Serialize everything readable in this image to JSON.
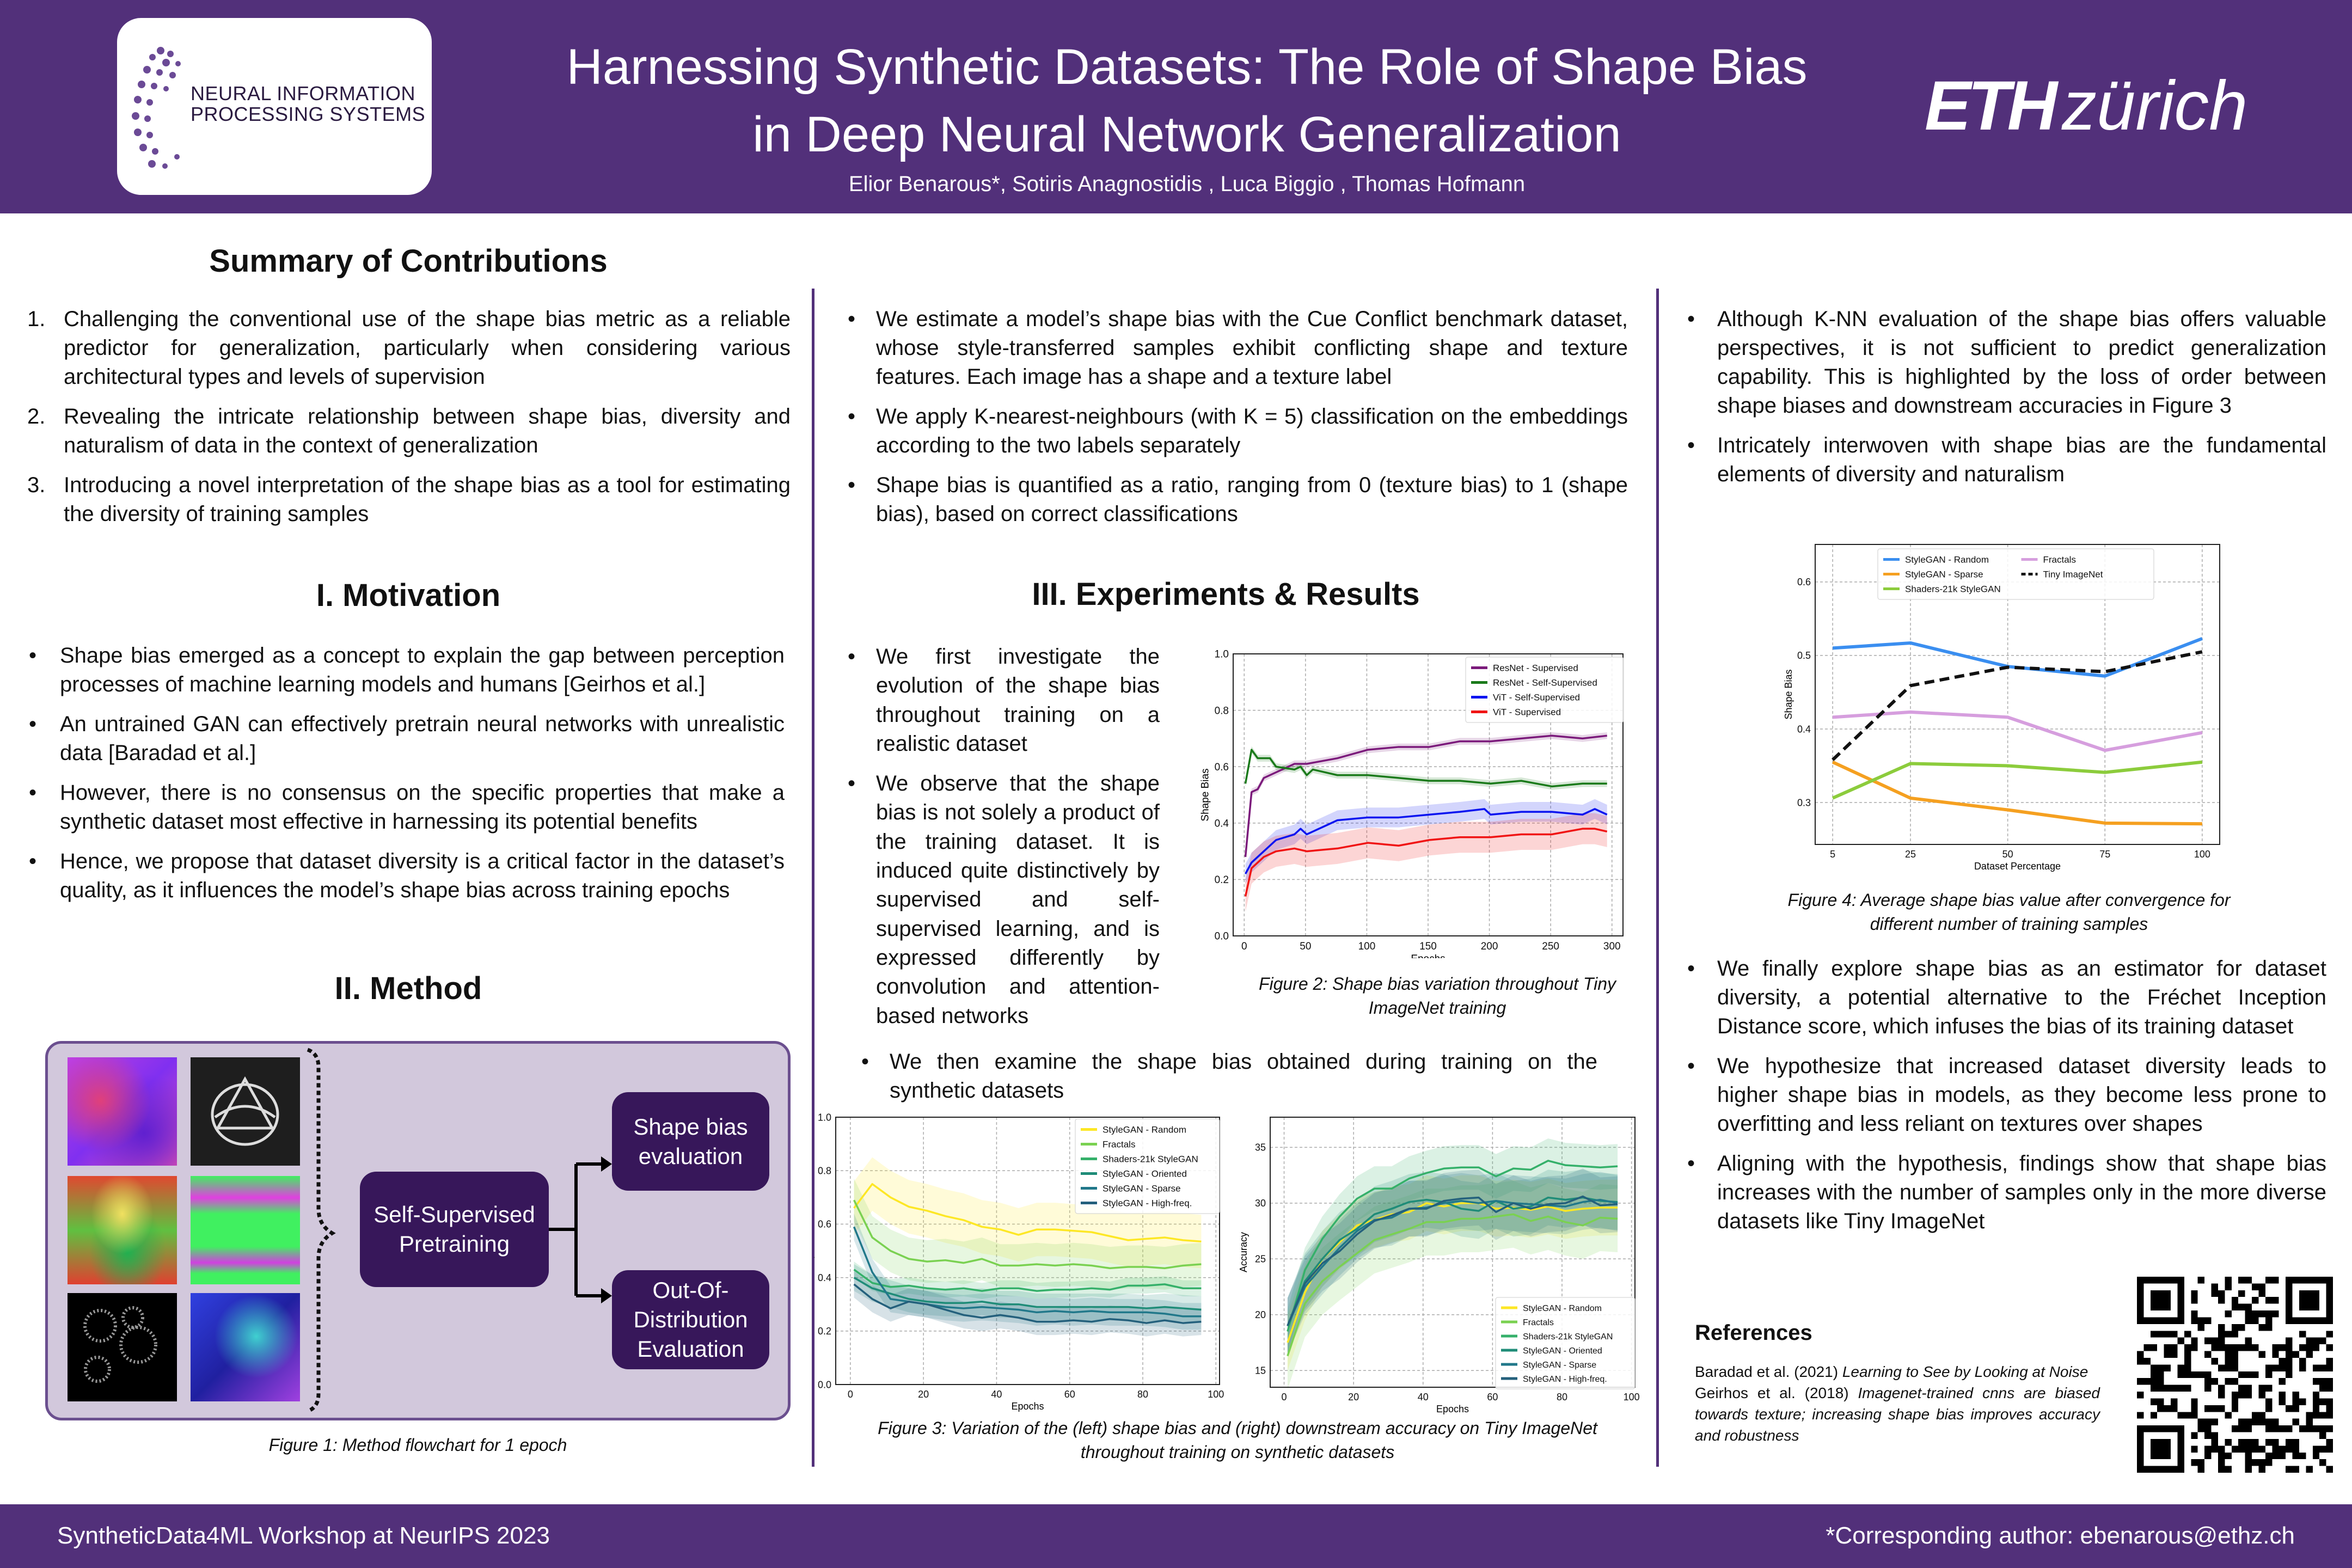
{
  "header": {
    "title_line1": "Harnessing Synthetic Datasets: The Role of Shape Bias",
    "title_line2": "in Deep Neural Network Generalization",
    "authors": "Elior Benarous*,  Sotiris Anagnostidis ,  Luca Biggio ,  Thomas Hofmann",
    "left_logo_text_line1": "NEURAL INFORMATION",
    "left_logo_text_line2": "PROCESSING SYSTEMS",
    "right_logo_bold": "ETH",
    "right_logo_rest": "zürich",
    "brand_color": "#52307a"
  },
  "contributions": {
    "heading": "Summary of Contributions",
    "items": [
      {
        "num": "1.",
        "text": "Challenging the conventional use of the shape bias metric as a reliable predictor for generalization, particularly when considering various architectural types and levels of supervision"
      },
      {
        "num": "2.",
        "text": "Revealing the intricate relationship between shape bias, diversity and naturalism of data in the context of generalization"
      },
      {
        "num": "3.",
        "text": "Introducing a novel interpretation of the shape bias as a tool for estimating the diversity of training samples"
      }
    ]
  },
  "motivation": {
    "heading": "I. Motivation",
    "bullets": [
      "Shape bias emerged as a concept to explain the gap between perception processes of machine learning models and humans [Geirhos et al.]",
      "An untrained GAN can effectively pretrain neural networks with unrealistic data [Baradad et al.]",
      "However, there is no consensus on the specific properties that make a synthetic dataset most effective in harnessing its potential benefits",
      "Hence, we propose that dataset diversity is a critical factor in the dataset’s quality, as it influences the model’s shape bias across training epochs"
    ]
  },
  "method": {
    "heading": "II. Method",
    "box_pretraining": "Self-Supervised Pretraining",
    "box_shape_bias": "Shape bias evaluation",
    "box_ood": "Out-Of-Distribution Evaluation",
    "caption": "Figure 1: Method flowchart for 1 epoch"
  },
  "estimation": {
    "bullets": [
      "We estimate a model’s shape bias with the Cue Conflict benchmark dataset, whose style-transferred samples exhibit conflicting shape and texture features. Each image has a shape and a texture label",
      "We apply K-nearest-neighbours (with K = 5) classification on the embeddings according to the two labels separately",
      "Shape bias is quantified as a ratio, ranging from 0 (texture bias) to 1 (shape bias), based on correct classifications"
    ]
  },
  "experiments": {
    "heading": "III. Experiments & Results",
    "bullets": [
      "We first investigate the evolution of the shape bias throughout training on a realistic dataset",
      "We observe that the shape bias is not solely a product of the training dataset. It is induced quite distinctively by supervised and self-supervised learning, and is expressed differently by convolution and attention-based networks"
    ],
    "bullet_synthetic": "We then examine the shape bias obtained during training on the synthetic datasets",
    "fig2_caption": "Figure 2: Shape bias variation throughout Tiny ImageNet training",
    "fig3_caption": "Figure 3: Variation of the (left) shape bias and (right) downstream accuracy on Tiny ImageNet throughout training on synthetic datasets"
  },
  "analysis": {
    "bullets_top": [
      "Although K-NN evaluation of the shape bias offers valuable perspectives, it is not sufficient to predict generalization capability. This is highlighted by the loss of order between shape biases and downstream accuracies in Figure 3",
      "Intricately interwoven with shape bias are the fundamental elements of diversity and naturalism"
    ],
    "fig4_caption": "Figure 4: Average shape bias value after convergence for different number of training samples",
    "bullets_bottom": [
      "We finally explore shape bias as an estimator for dataset diversity, a potential alternative to the Fréchet Inception Distance score, which infuses the bias of its training dataset",
      "We hypothesize that increased dataset diversity leads to higher shape bias in models, as they become less prone to overfitting and less reliant on textures over shapes",
      "Aligning with the hypothesis, findings show that shape bias increases with the number of samples only in the more diverse datasets like Tiny ImageNet"
    ]
  },
  "references": {
    "heading": "References",
    "items": [
      {
        "author": "Baradad et al. (2021)",
        "title": "Learning to See by Looking at Noise"
      },
      {
        "author": "Geirhos et al. (2018)",
        "title": "Imagenet-trained cnns are biased towards texture; increasing shape bias improves accuracy and robustness"
      }
    ]
  },
  "footer": {
    "left": "SyntheticData4ML Workshop at NeurIPS 2023",
    "right": "*Corresponding author: ebenarous@ethz.ch"
  },
  "chart_data": [
    {
      "id": "fig2",
      "type": "line",
      "xlabel": "Epochs",
      "ylabel": "Shape Bias",
      "xlim": [
        -9,
        309
      ],
      "ylim": [
        0,
        1
      ],
      "xticks": [
        0,
        50,
        100,
        150,
        200,
        250,
        300
      ],
      "yticks": [
        0.0,
        0.2,
        0.4,
        0.6,
        0.8,
        1.0
      ],
      "grid": true,
      "legend": "top-right",
      "legend_columns": 1,
      "series": [
        {
          "name": "ResNet - Supervised",
          "color": "#7b1a7b",
          "spread": 0.012,
          "x": [
            1,
            6,
            11,
            16,
            26,
            41,
            51,
            76,
            101,
            126,
            151,
            176,
            201,
            226,
            251,
            276,
            296
          ],
          "y": [
            0.28,
            0.51,
            0.52,
            0.56,
            0.58,
            0.61,
            0.61,
            0.63,
            0.66,
            0.67,
            0.67,
            0.69,
            0.69,
            0.7,
            0.71,
            0.7,
            0.71
          ]
        },
        {
          "name": "ResNet - Self-Supervised",
          "color": "#1a7a1a",
          "spread": 0.012,
          "x": [
            1,
            6,
            11,
            21,
            26,
            41,
            46,
            51,
            56,
            76,
            101,
            126,
            151,
            176,
            201,
            226,
            251,
            276,
            296
          ],
          "y": [
            0.54,
            0.66,
            0.63,
            0.63,
            0.6,
            0.59,
            0.6,
            0.57,
            0.59,
            0.57,
            0.57,
            0.56,
            0.55,
            0.55,
            0.54,
            0.55,
            0.53,
            0.54,
            0.54
          ]
        },
        {
          "name": "ViT - Self-Supervised",
          "color": "#0a14f0",
          "spread": 0.035,
          "x": [
            1,
            6,
            16,
            26,
            41,
            46,
            51,
            66,
            76,
            101,
            126,
            151,
            176,
            196,
            201,
            226,
            251,
            276,
            286,
            296
          ],
          "y": [
            0.22,
            0.26,
            0.3,
            0.34,
            0.36,
            0.38,
            0.36,
            0.39,
            0.41,
            0.42,
            0.42,
            0.43,
            0.44,
            0.45,
            0.43,
            0.44,
            0.44,
            0.43,
            0.45,
            0.43
          ]
        },
        {
          "name": "ViT - Supervised",
          "color": "#f01414",
          "spread": 0.055,
          "x": [
            1,
            6,
            16,
            26,
            41,
            51,
            76,
            101,
            126,
            151,
            176,
            201,
            226,
            251,
            276,
            286,
            296
          ],
          "y": [
            0.14,
            0.24,
            0.28,
            0.3,
            0.31,
            0.3,
            0.31,
            0.33,
            0.32,
            0.34,
            0.35,
            0.35,
            0.36,
            0.36,
            0.38,
            0.38,
            0.37
          ]
        }
      ]
    },
    {
      "id": "fig3a",
      "type": "line",
      "xlabel": "Epochs",
      "ylabel": "Shape Bias",
      "xlim": [
        -4,
        101
      ],
      "ylim": [
        0,
        1
      ],
      "xticks": [
        0,
        20,
        40,
        60,
        80,
        100
      ],
      "yticks": [
        0.0,
        0.2,
        0.4,
        0.6,
        0.8,
        1.0
      ],
      "grid": true,
      "legend": "top-right",
      "legend_columns": 1,
      "x": [
        1,
        6,
        11,
        16,
        21,
        26,
        31,
        36,
        41,
        46,
        51,
        56,
        61,
        66,
        71,
        76,
        81,
        86,
        91,
        96
      ],
      "series": [
        {
          "name": "StyleGAN - Random",
          "color": "#fde725",
          "spread": 0.1,
          "y": [
            0.66,
            0.75,
            0.7,
            0.665,
            0.65,
            0.63,
            0.615,
            0.59,
            0.58,
            0.56,
            0.58,
            0.58,
            0.575,
            0.57,
            0.555,
            0.54,
            0.545,
            0.55,
            0.54,
            0.535
          ]
        },
        {
          "name": "Fractals",
          "color": "#7ad151",
          "spread": 0.08,
          "y": [
            0.69,
            0.55,
            0.5,
            0.47,
            0.46,
            0.465,
            0.455,
            0.47,
            0.445,
            0.445,
            0.45,
            0.445,
            0.45,
            0.445,
            0.435,
            0.44,
            0.44,
            0.435,
            0.445,
            0.45
          ]
        },
        {
          "name": "Shaders-21k StyleGAN",
          "color": "#35b06a",
          "spread": 0.03,
          "y": [
            0.43,
            0.38,
            0.365,
            0.37,
            0.36,
            0.355,
            0.36,
            0.35,
            0.36,
            0.36,
            0.35,
            0.355,
            0.355,
            0.36,
            0.355,
            0.37,
            0.37,
            0.375,
            0.36,
            0.36
          ]
        },
        {
          "name": "StyleGAN - Oriented",
          "color": "#1f8c78",
          "spread": 0.05,
          "y": [
            0.4,
            0.36,
            0.34,
            0.32,
            0.31,
            0.305,
            0.305,
            0.31,
            0.3,
            0.3,
            0.29,
            0.29,
            0.29,
            0.29,
            0.29,
            0.29,
            0.285,
            0.29,
            0.285,
            0.28
          ]
        },
        {
          "name": "StyleGAN - Sparse",
          "color": "#21788a",
          "spread": 0.05,
          "y": [
            0.59,
            0.42,
            0.32,
            0.31,
            0.3,
            0.29,
            0.285,
            0.29,
            0.285,
            0.28,
            0.27,
            0.275,
            0.27,
            0.275,
            0.27,
            0.27,
            0.27,
            0.265,
            0.255,
            0.255
          ]
        },
        {
          "name": "StyleGAN - High-freq.",
          "color": "#24607c",
          "spread": 0.05,
          "y": [
            0.375,
            0.32,
            0.285,
            0.31,
            0.3,
            0.28,
            0.26,
            0.25,
            0.26,
            0.25,
            0.235,
            0.235,
            0.24,
            0.235,
            0.245,
            0.24,
            0.23,
            0.24,
            0.23,
            0.235
          ]
        }
      ]
    },
    {
      "id": "fig3b",
      "type": "line",
      "xlabel": "Epochs",
      "ylabel": "Accuracy",
      "xlim": [
        -4,
        101
      ],
      "ylim": [
        13.5,
        37.7
      ],
      "xticks": [
        0,
        20,
        40,
        60,
        80,
        100
      ],
      "yticks": [
        15,
        20,
        25,
        30,
        35
      ],
      "grid": true,
      "legend": "bottom-right",
      "legend_columns": 1,
      "x": [
        1,
        6,
        11,
        16,
        21,
        26,
        31,
        36,
        41,
        46,
        51,
        56,
        61,
        66,
        71,
        76,
        81,
        86,
        91,
        96
      ],
      "series": [
        {
          "name": "StyleGAN - Random",
          "color": "#fde725",
          "spread": 2.5,
          "y": [
            17.5,
            22,
            25,
            26.5,
            28,
            28.5,
            29,
            29.2,
            30,
            29.7,
            30,
            30,
            29.5,
            29.6,
            29.4,
            29.7,
            29.3,
            29.5,
            29.6,
            29.6
          ]
        },
        {
          "name": "Fractals",
          "color": "#7ad151",
          "spread": 3,
          "y": [
            16.3,
            21,
            23,
            24.3,
            25.5,
            26.7,
            27.2,
            27.7,
            28.3,
            28.3,
            28.6,
            28.6,
            28.8,
            29,
            28.4,
            28.8,
            28.3,
            28,
            28.7,
            28.6
          ]
        },
        {
          "name": "Shaders-21k StyleGAN",
          "color": "#35b06a",
          "spread": 2,
          "y": [
            18.5,
            24,
            26.8,
            28.8,
            30.4,
            31.3,
            31.3,
            32.2,
            32.7,
            33.1,
            33.2,
            33.2,
            32.4,
            33.1,
            33,
            33.8,
            33.4,
            33.3,
            33.2,
            33.3
          ]
        },
        {
          "name": "StyleGAN - Oriented",
          "color": "#1f8c78",
          "spread": 2.5,
          "y": [
            19,
            23,
            25,
            26.7,
            27.7,
            29,
            29.5,
            30.1,
            30.3,
            30.1,
            29.5,
            29.3,
            30.2,
            29.5,
            29.7,
            30.5,
            30.3,
            30.5,
            30.2,
            30.1
          ]
        },
        {
          "name": "StyleGAN - Sparse",
          "color": "#21788a",
          "spread": 2.5,
          "y": [
            19,
            22.5,
            24.3,
            26,
            27.5,
            28.5,
            28.7,
            29.5,
            29.6,
            30,
            30.2,
            30,
            30.2,
            30,
            29.9,
            29.8,
            29.7,
            30.1,
            30.3,
            30
          ]
        },
        {
          "name": "StyleGAN - High-freq.",
          "color": "#24607c",
          "spread": 2.5,
          "y": [
            19,
            22.8,
            24.6,
            25.7,
            27.2,
            28.4,
            28.9,
            29.5,
            29.5,
            30.2,
            30.4,
            30.5,
            29.2,
            30,
            29.5,
            29.9,
            30,
            30.6,
            29.8,
            29.9
          ]
        }
      ]
    },
    {
      "id": "fig4",
      "type": "line",
      "xlabel": "Dataset Percentage",
      "ylabel": "Shape Bias",
      "xlim": [
        0.5,
        104.5
      ],
      "ylim": [
        0.243,
        0.651
      ],
      "xticks": [
        5,
        25,
        50,
        75,
        100
      ],
      "yticks": [
        0.3,
        0.4,
        0.5,
        0.6
      ],
      "grid": true,
      "legend": "top-center",
      "legend_columns": 2,
      "x": [
        5,
        25,
        50,
        75,
        100
      ],
      "series": [
        {
          "name": "StyleGAN - Random",
          "color": "#3a8ef0",
          "y": [
            0.51,
            0.517,
            0.485,
            0.472,
            0.523
          ]
        },
        {
          "name": "StyleGAN - Sparse",
          "color": "#f5a020",
          "y": [
            0.355,
            0.306,
            0.29,
            0.272,
            0.271
          ]
        },
        {
          "name": "Shaders-21k StyleGAN",
          "color": "#8ccc3c",
          "y": [
            0.306,
            0.353,
            0.35,
            0.341,
            0.355
          ]
        },
        {
          "name": "Fractals",
          "color": "#d69ede",
          "y": [
            0.416,
            0.423,
            0.416,
            0.371,
            0.395
          ]
        },
        {
          "name": "Tiny ImageNet",
          "color": "#111111",
          "dashed": true,
          "y": [
            0.358,
            0.459,
            0.484,
            0.478,
            0.505
          ]
        }
      ]
    }
  ]
}
